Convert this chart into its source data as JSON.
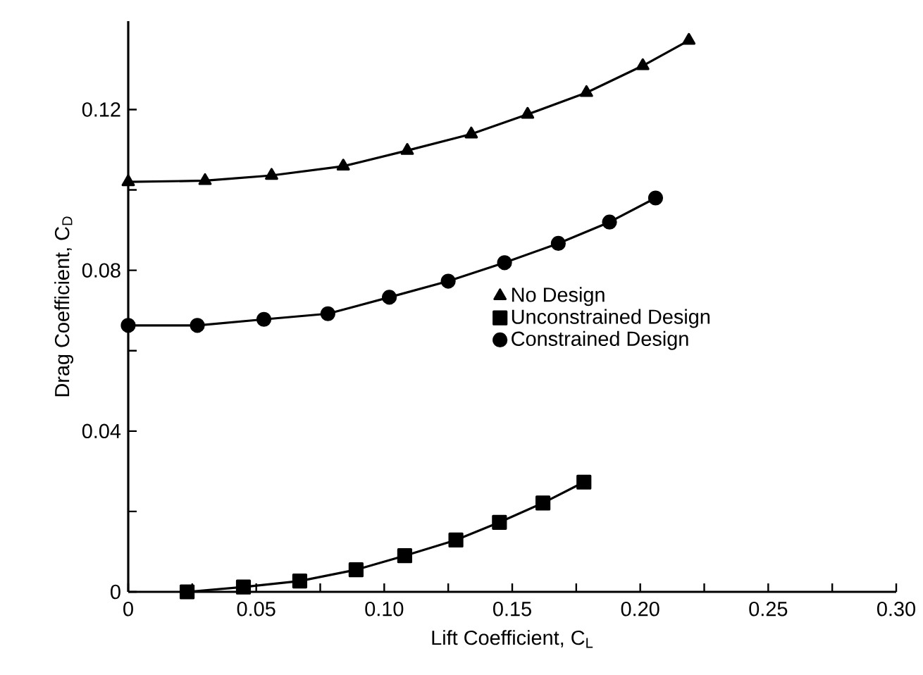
{
  "chart_data": {
    "type": "line",
    "xlabel": "Lift Coefficient, C$_{L}$",
    "ylabel": "Drag Coefficient, C$_{D}$",
    "xlim": [
      0,
      0.3
    ],
    "ylim": [
      0,
      0.142
    ],
    "xticks": [
      0,
      {
        "value": 0.025,
        "label": null
      },
      0.05,
      {
        "value": 0.075,
        "label": null
      },
      {
        "value": 0.1,
        "label": "0.10"
      },
      {
        "value": 0.125,
        "label": null
      },
      0.15,
      {
        "value": 0.175,
        "label": null
      },
      {
        "value": 0.2,
        "label": "0.20"
      },
      {
        "value": 0.225,
        "label": null
      },
      0.25,
      {
        "value": 0.275,
        "label": null
      },
      {
        "value": 0.3,
        "label": "0.30"
      }
    ],
    "yticks": [
      0,
      {
        "value": 0.02,
        "label": null
      },
      0.04,
      {
        "value": 0.06,
        "label": null
      },
      0.08,
      {
        "value": 0.1,
        "label": null
      },
      0.12
    ],
    "legend": "right",
    "line_style": "solid",
    "grid": false,
    "series": [
      {
        "name": "No Design",
        "color": "#000000",
        "marker": "triangle",
        "x": [
          0,
          0.03,
          0.056,
          0.084,
          0.109,
          0.134,
          0.156,
          0.179,
          0.201,
          0.219
        ],
        "values": [
          0.102,
          0.1023,
          0.1036,
          0.1059,
          0.1098,
          0.1139,
          0.1188,
          0.1242,
          0.1309,
          0.1372
        ]
      },
      {
        "name": "Unconstrained Design",
        "color": "#000000",
        "marker": "square",
        "x": [
          0.023,
          0.045,
          0.067,
          0.089,
          0.108,
          0.128,
          0.145,
          0.162,
          0.178
        ],
        "values": [
          0,
          0.0012,
          0.0027,
          0.0055,
          0.009,
          0.0129,
          0.0173,
          0.0221,
          0.0273
        ]
      },
      {
        "name": "Constrained Design",
        "color": "#000000",
        "marker": "circle",
        "x": [
          0,
          0.027,
          0.053,
          0.078,
          0.102,
          0.125,
          0.147,
          0.168,
          0.188,
          0.206
        ],
        "values": [
          0.0663,
          0.0663,
          0.0678,
          0.0692,
          0.0733,
          0.0773,
          0.0819,
          0.0867,
          0.092,
          0.098
        ]
      }
    ]
  }
}
